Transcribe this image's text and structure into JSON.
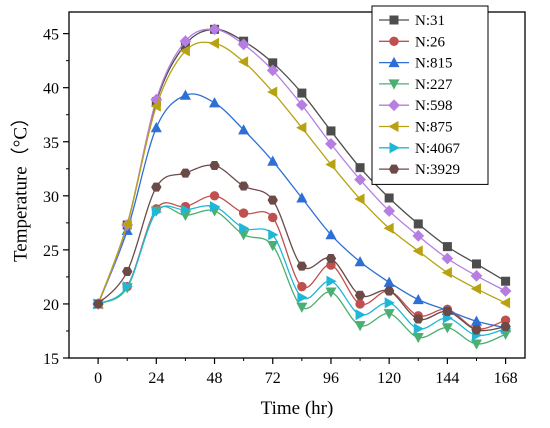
{
  "chart_data": {
    "type": "line",
    "xlabel": "Time (hr)",
    "ylabel": "Temperature（°C）",
    "xlim": [
      -12,
      176
    ],
    "ylim": [
      15,
      47
    ],
    "xticks": [
      0,
      24,
      48,
      72,
      96,
      120,
      144,
      168
    ],
    "yticks": [
      15,
      20,
      25,
      30,
      35,
      40,
      45
    ],
    "grid": false,
    "legend_position": "top-right",
    "x": [
      0,
      12,
      24,
      36,
      48,
      60,
      72,
      84,
      96,
      108,
      120,
      132,
      144,
      156,
      168
    ],
    "series": [
      {
        "name": "N:31",
        "color": "#4d4d4d",
        "marker": "square",
        "values": [
          20.0,
          27.3,
          38.7,
          44.0,
          45.4,
          44.3,
          42.3,
          39.5,
          36.0,
          32.6,
          29.8,
          27.4,
          25.3,
          23.7,
          22.1
        ]
      },
      {
        "name": "N:26",
        "color": "#c0504d",
        "marker": "circle",
        "values": [
          20.0,
          21.6,
          28.8,
          29.0,
          30.0,
          28.4,
          28.0,
          21.6,
          23.6,
          20.0,
          21.2,
          18.9,
          19.5,
          17.7,
          18.5
        ]
      },
      {
        "name": "N:815",
        "color": "#2e6fd6",
        "marker": "triangle-up",
        "values": [
          20.0,
          26.8,
          36.3,
          39.3,
          38.6,
          36.1,
          33.2,
          29.8,
          26.4,
          23.9,
          22.0,
          20.4,
          19.4,
          18.4,
          17.8
        ]
      },
      {
        "name": "N:227",
        "color": "#4caf72",
        "marker": "triangle-down",
        "values": [
          20.0,
          21.5,
          28.6,
          28.2,
          28.6,
          26.4,
          25.4,
          19.7,
          21.1,
          18.0,
          19.1,
          16.9,
          17.8,
          16.3,
          17.2
        ]
      },
      {
        "name": "N:598",
        "color": "#b57ee0",
        "marker": "diamond",
        "values": [
          20.0,
          27.3,
          38.9,
          44.3,
          45.4,
          44.0,
          41.6,
          38.4,
          34.8,
          31.5,
          28.6,
          26.3,
          24.2,
          22.6,
          21.2
        ]
      },
      {
        "name": "N:875",
        "color": "#b8a212",
        "marker": "triangle-left",
        "values": [
          20.0,
          27.4,
          38.3,
          43.4,
          44.1,
          42.4,
          39.6,
          36.3,
          32.9,
          29.7,
          27.0,
          24.9,
          22.9,
          21.4,
          20.1
        ]
      },
      {
        "name": "N:4067",
        "color": "#1fb7d6",
        "marker": "triangle-right",
        "values": [
          20.0,
          21.6,
          28.5,
          28.7,
          29.0,
          27.0,
          26.4,
          20.6,
          22.1,
          19.0,
          20.1,
          17.7,
          18.7,
          17.1,
          17.7
        ]
      },
      {
        "name": "N:3929",
        "color": "#6b4a48",
        "marker": "hexagon",
        "values": [
          20.0,
          23.0,
          30.8,
          32.1,
          32.8,
          30.9,
          29.6,
          23.5,
          24.2,
          20.8,
          21.2,
          18.6,
          19.3,
          17.6,
          17.9
        ]
      }
    ]
  }
}
